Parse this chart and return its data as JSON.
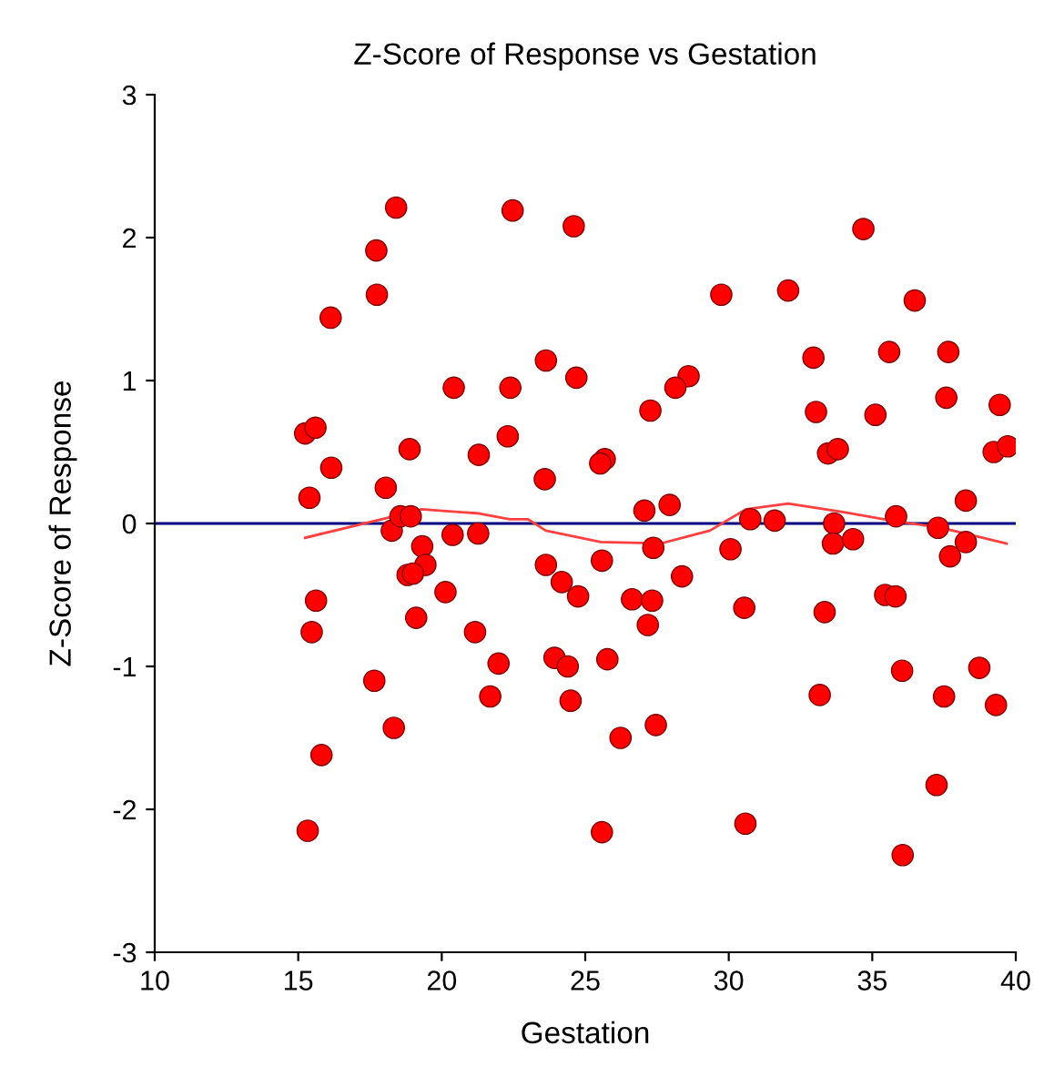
{
  "chart_data": {
    "type": "scatter",
    "title": "Z-Score of Response vs Gestation",
    "xlabel": "Gestation",
    "ylabel": "Z-Score of Response",
    "xlim": [
      10,
      40
    ],
    "xticks": [
      10,
      15,
      20,
      25,
      30,
      35,
      40
    ],
    "ylim": [
      -3,
      3
    ],
    "yticks": [
      -3,
      -2,
      -1,
      0,
      1,
      2,
      3
    ],
    "grid": false,
    "legend": false,
    "ref_lines": [
      {
        "axis": "y",
        "value": 0,
        "color": "#000080"
      }
    ],
    "series": [
      {
        "marker": "circle",
        "color": "#ff0000",
        "x": [
          18.26,
          18.56,
          18.92,
          19.32,
          19.43,
          18.81,
          19.0,
          20.38,
          21.27,
          20.13,
          19.11,
          15.62,
          15.47,
          21.16,
          21.98,
          17.65,
          21.69,
          18.33,
          15.81,
          15.33,
          23.63,
          18.41,
          22.47,
          17.72,
          17.74,
          16.13,
          23.63,
          20.42,
          22.39,
          15.24,
          15.6,
          18.88,
          21.29,
          22.3,
          16.15,
          18.05,
          15.39,
          23.59,
          24.6,
          34.69,
          29.74,
          32.07,
          36.48,
          24.69,
          28.6,
          28.14,
          27.27,
          32.95,
          35.59,
          37.65,
          37.58,
          33.04,
          35.11,
          39.44,
          25.68,
          25.52,
          33.46,
          33.8,
          39.23,
          39.72,
          27.06,
          27.94,
          30.75,
          31.6,
          33.67,
          35.83,
          38.26,
          37.29,
          38.26,
          27.37,
          30.06,
          33.63,
          34.33,
          37.71,
          25.58,
          24.18,
          24.75,
          26.63,
          27.33,
          28.37,
          27.18,
          30.54,
          33.34,
          35.45,
          35.81,
          23.93,
          24.39,
          25.77,
          36.04,
          38.73,
          24.49,
          37.5,
          39.31,
          33.17,
          26.23,
          27.46,
          37.24,
          25.58,
          30.58,
          36.06
        ],
        "values": [
          -0.05,
          0.05,
          0.05,
          -0.16,
          -0.29,
          -0.36,
          -0.35,
          -0.08,
          -0.07,
          -0.48,
          -0.66,
          -0.54,
          -0.76,
          -0.76,
          -0.98,
          -1.1,
          -1.21,
          -1.43,
          -1.62,
          -2.15,
          -0.29,
          2.21,
          2.19,
          1.91,
          1.6,
          1.44,
          1.14,
          0.95,
          0.95,
          0.63,
          0.67,
          0.52,
          0.48,
          0.61,
          0.39,
          0.25,
          0.18,
          0.31,
          2.08,
          2.06,
          1.6,
          1.63,
          1.56,
          1.02,
          1.03,
          0.95,
          0.79,
          1.16,
          1.2,
          1.2,
          0.88,
          0.78,
          0.76,
          0.83,
          0.45,
          0.42,
          0.49,
          0.52,
          0.5,
          0.54,
          0.09,
          0.13,
          0.03,
          0.02,
          0.0,
          0.05,
          0.16,
          -0.03,
          -0.13,
          -0.17,
          -0.18,
          -0.14,
          -0.11,
          -0.23,
          -0.26,
          -0.41,
          -0.51,
          -0.53,
          -0.54,
          -0.37,
          -0.71,
          -0.59,
          -0.62,
          -0.5,
          -0.51,
          -0.94,
          -1.0,
          -0.95,
          -1.03,
          -1.01,
          -1.24,
          -1.21,
          -1.27,
          -1.2,
          -1.5,
          -1.41,
          -1.83,
          -2.16,
          -2.1,
          -2.32
        ]
      },
      {
        "type": "line",
        "color": "#ff4040",
        "x": [
          15.24,
          18.14,
          19.3,
          21.31,
          22.37,
          23.0,
          23.63,
          25.54,
          27.63,
          29.34,
          30.61,
          32.07,
          33.97,
          35.68,
          37.39,
          39.68
        ],
        "values": [
          -0.1,
          0.04,
          0.1,
          0.07,
          0.03,
          0.03,
          -0.05,
          -0.13,
          -0.14,
          -0.05,
          0.1,
          0.14,
          0.08,
          0.02,
          -0.03,
          -0.14
        ]
      }
    ]
  }
}
